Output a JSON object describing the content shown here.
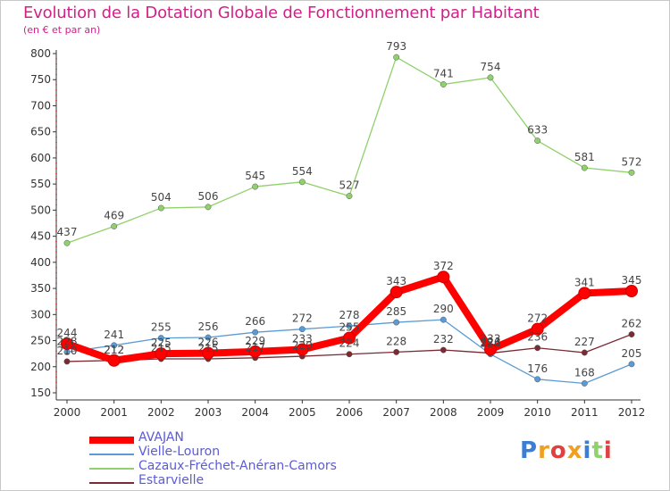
{
  "title": "Evolution de la Dotation Globale de Fonctionnement par Habitant",
  "subtitle": "(en € et par an)",
  "logo_text": "Proxiti",
  "chart_data": {
    "type": "line",
    "x": [
      "2000",
      "2001",
      "2002",
      "2003",
      "2004",
      "2005",
      "2006",
      "2007",
      "2008",
      "2009",
      "2010",
      "2011",
      "2012"
    ],
    "yticks": [
      150,
      200,
      250,
      300,
      350,
      400,
      450,
      500,
      550,
      600,
      650,
      700,
      750,
      800
    ],
    "ylim": [
      150,
      800
    ],
    "grid": false,
    "legend_placement": "bottom-left",
    "series": [
      {
        "name": "AVAJAN",
        "color": "#ff0000",
        "values": [
          244,
          212,
          225,
          226,
          229,
          233,
          255,
          343,
          372,
          233,
          272,
          341,
          345
        ]
      },
      {
        "name": "Vielle-Louron",
        "color": "#5b9bd5",
        "values": [
          228,
          241,
          255,
          256,
          266,
          272,
          278,
          285,
          290,
          224,
          176,
          168,
          205
        ]
      },
      {
        "name": "Cazaux-Fréchet-Anéran-Camors",
        "color": "#8fd16a",
        "values": [
          437,
          469,
          504,
          506,
          545,
          554,
          527,
          793,
          741,
          754,
          633,
          581,
          572
        ]
      },
      {
        "name": "Estarvielle",
        "color": "#7a2a32",
        "values": [
          210,
          212,
          215,
          215,
          217,
          220,
          224,
          228,
          232,
          226,
          236,
          227,
          262
        ]
      }
    ]
  }
}
